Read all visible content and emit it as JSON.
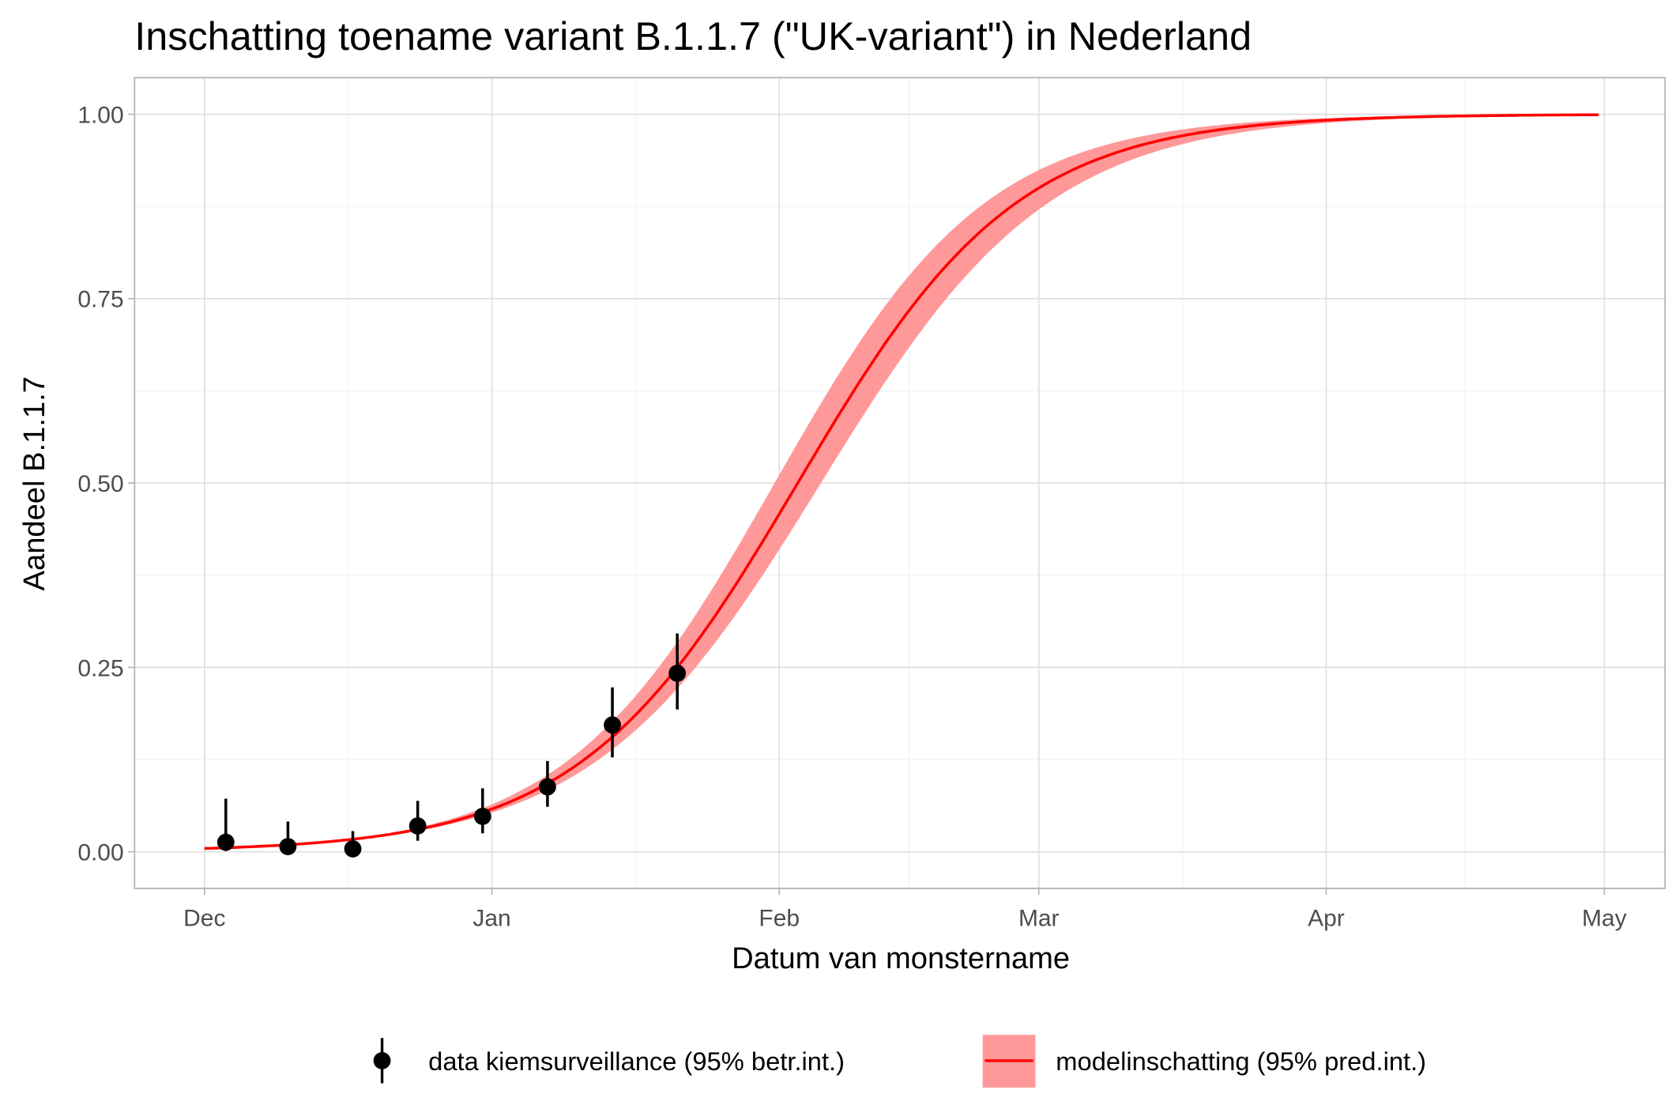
{
  "chart_data": {
    "type": "line",
    "title": "Inschatting toename variant B.1.1.7 (\"UK-variant\") in Nederland",
    "xlabel": "Datum van monstername",
    "ylabel": "Aandeel B.1.1.7",
    "x_start_date": "2020-12-01",
    "xlim_days": [
      -7.5,
      157
    ],
    "ylim": [
      -0.05,
      1.05
    ],
    "x_ticks": [
      {
        "label": "Dec",
        "day": 0
      },
      {
        "label": "Jan",
        "day": 31
      },
      {
        "label": "Feb",
        "day": 62
      },
      {
        "label": "Mar",
        "day": 90
      },
      {
        "label": "Apr",
        "day": 121
      },
      {
        "label": "May",
        "day": 151
      }
    ],
    "y_ticks": [
      {
        "label": "0.00",
        "value": 0
      },
      {
        "label": "0.25",
        "value": 0.25
      },
      {
        "label": "0.50",
        "value": 0.5
      },
      {
        "label": "0.75",
        "value": 0.75
      },
      {
        "label": "1.00",
        "value": 1
      }
    ],
    "grid": true,
    "legend_position": "bottom",
    "series": [
      {
        "name": "data kiemsurveillance (95% betr.int.)",
        "kind": "pointrange",
        "color": "#000000",
        "points": [
          {
            "date": "2020-12-03",
            "day": 2.3,
            "y": 0.013,
            "lo": 0.001,
            "hi": 0.072
          },
          {
            "date": "2020-12-10",
            "day": 9,
            "y": 0.007,
            "lo": 0.0,
            "hi": 0.041
          },
          {
            "date": "2020-12-17",
            "day": 16,
            "y": 0.004,
            "lo": 0.0,
            "hi": 0.028
          },
          {
            "date": "2020-12-24",
            "day": 23,
            "y": 0.035,
            "lo": 0.015,
            "hi": 0.069
          },
          {
            "date": "2020-12-31",
            "day": 30,
            "y": 0.048,
            "lo": 0.025,
            "hi": 0.086
          },
          {
            "date": "2021-01-07",
            "day": 37,
            "y": 0.088,
            "lo": 0.061,
            "hi": 0.123
          },
          {
            "date": "2021-01-14",
            "day": 44,
            "y": 0.172,
            "lo": 0.128,
            "hi": 0.223
          },
          {
            "date": "2021-01-21",
            "day": 51,
            "y": 0.242,
            "lo": 0.193,
            "hi": 0.296
          }
        ]
      },
      {
        "name": "modelinschatting (95% pred.int.)",
        "kind": "logistic-with-ribbon",
        "color": "#FF0000",
        "ribbon_color": "#FF9999",
        "day_range": [
          0,
          150.4
        ],
        "estimate": {
          "midpoint_day": 64,
          "rate_per_day": 0.0845
        },
        "lower": {
          "midpoint_day": 66.5,
          "rate_per_day": 0.0812
        },
        "upper": {
          "midpoint_day": 61.5,
          "rate_per_day": 0.0878
        }
      }
    ]
  }
}
